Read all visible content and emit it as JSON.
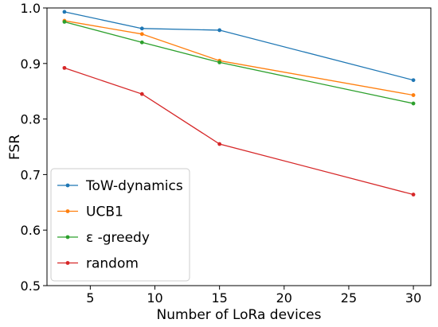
{
  "chart_data": {
    "type": "line",
    "xlabel": "Number of LoRa devices",
    "ylabel": "FSR",
    "xlim": [
      1.65,
      31.35
    ],
    "ylim": [
      0.5,
      1.0
    ],
    "xticks": [
      5,
      10,
      15,
      20,
      25,
      30
    ],
    "yticks": [
      0.5,
      0.6,
      0.7,
      0.8,
      0.9,
      1.0
    ],
    "ytick_labels": [
      "0.5",
      "0.6",
      "0.7",
      "0.8",
      "0.9",
      "1.0"
    ],
    "grid": false,
    "legend_position": "lower-left",
    "x": [
      3,
      9,
      15,
      30
    ],
    "series": [
      {
        "name": "ToW-dynamics",
        "color": "#1f77b4",
        "values": [
          0.993,
          0.963,
          0.96,
          0.87
        ]
      },
      {
        "name": "UCB1",
        "color": "#ff7f0e",
        "values": [
          0.977,
          0.953,
          0.905,
          0.843
        ]
      },
      {
        "name": "ε -greedy",
        "color": "#2ca02c",
        "values": [
          0.975,
          0.938,
          0.902,
          0.828
        ]
      },
      {
        "name": "random",
        "color": "#d62728",
        "values": [
          0.892,
          0.845,
          0.755,
          0.664
        ]
      }
    ]
  }
}
